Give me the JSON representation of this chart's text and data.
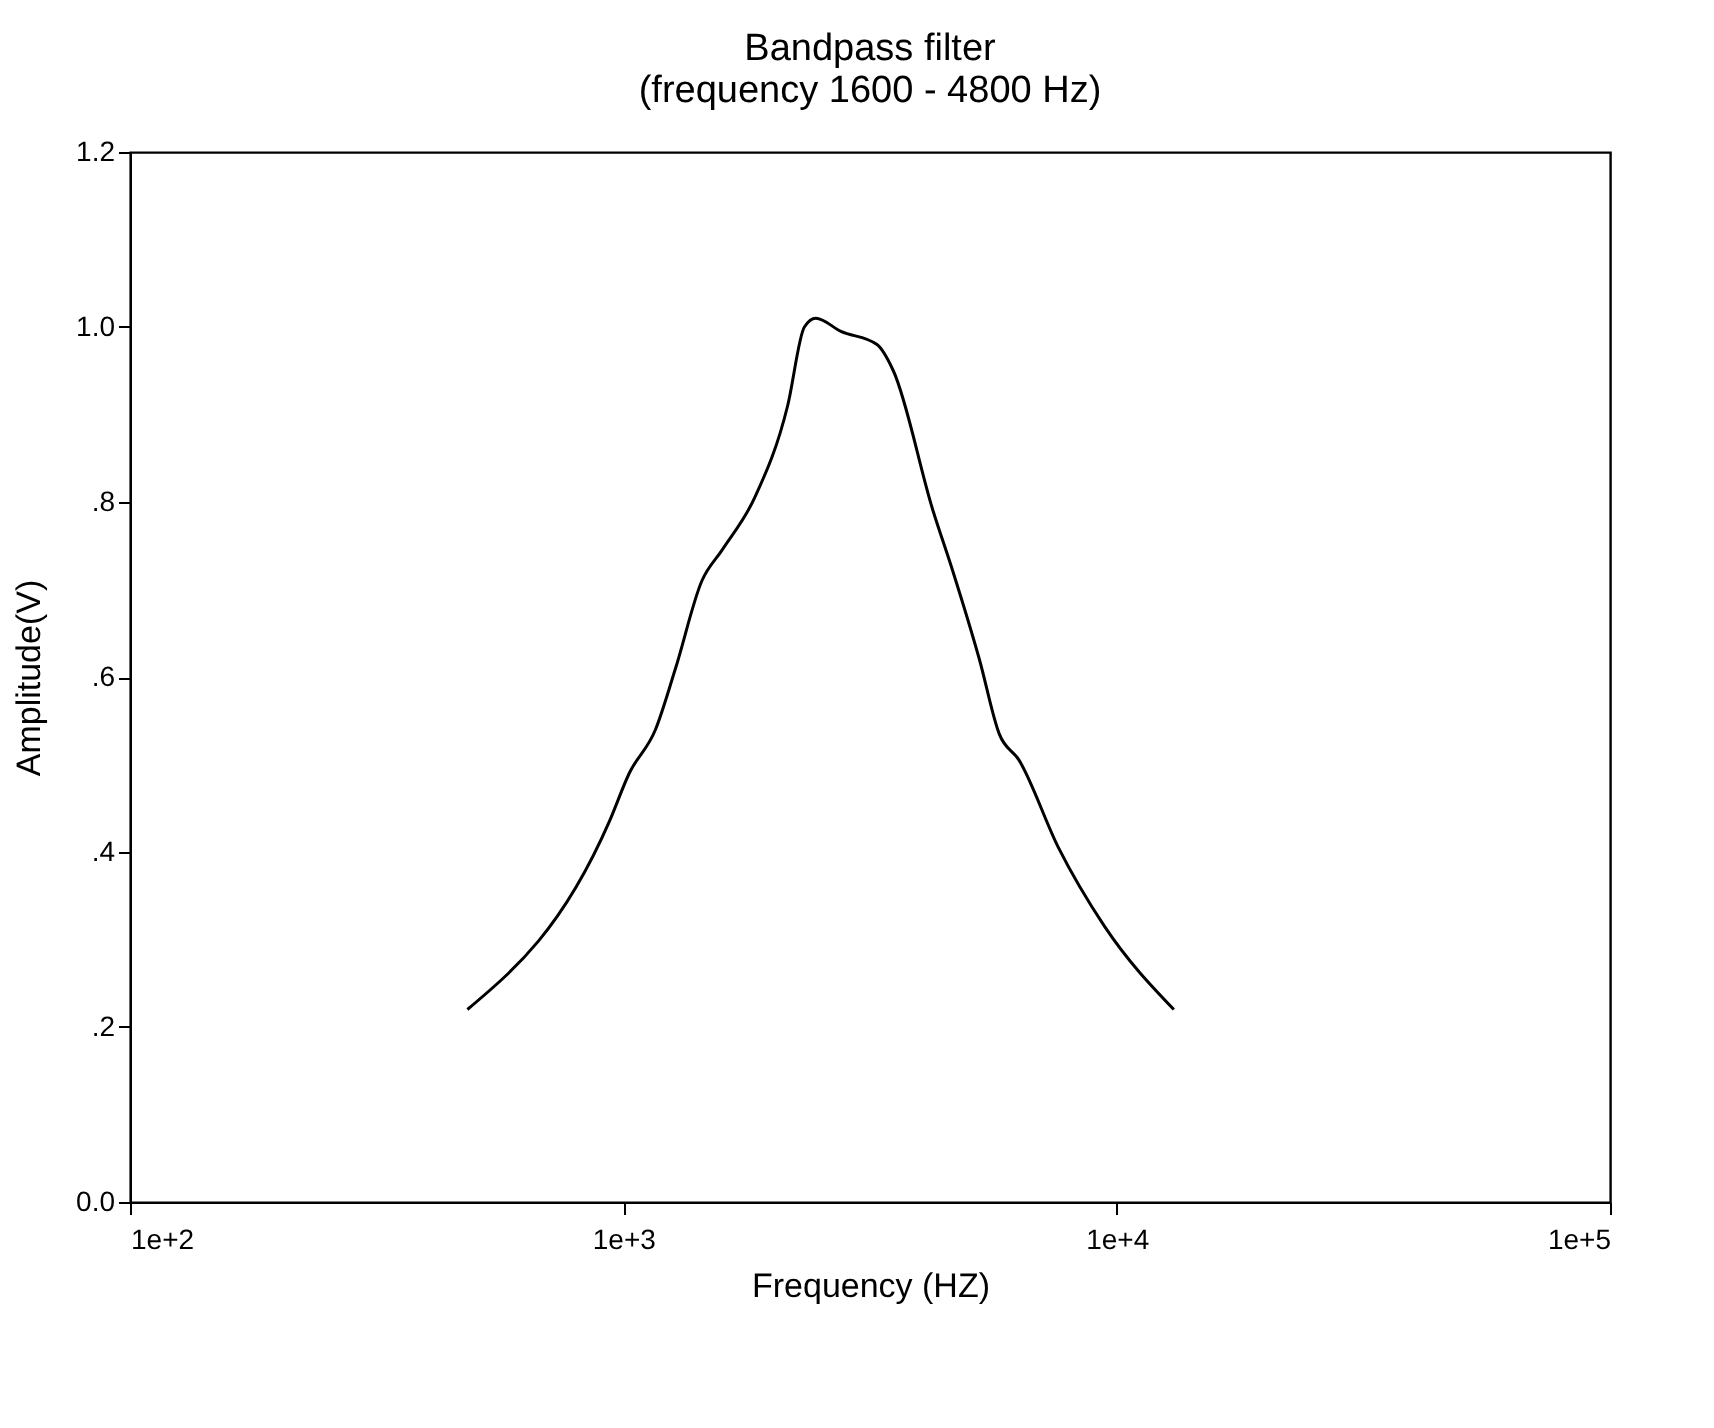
{
  "chart_data": {
    "type": "line",
    "title": [
      "Bandpass filter",
      "(frequency 1600 - 4800 Hz)"
    ],
    "xlabel": "Frequency (HZ)",
    "ylabel": "Amplitude(V)",
    "x": [
      483,
      937,
      1028,
      1162,
      1276,
      1443,
      1585,
      1846,
      2153,
      2328,
      2455,
      2761,
      3267,
      3526,
      4244,
      4660,
      5270,
      5780,
      6340,
      7620,
      9450,
      13060
    ],
    "series": [
      {
        "color": "#000000",
        "values": [
          0.22,
          0.435,
          0.49,
          0.54,
          0.61,
          0.71,
          0.745,
          0.805,
          0.91,
          1.0,
          1.01,
          0.995,
          0.98,
          0.95,
          0.79,
          0.72,
          0.62,
          0.535,
          0.505,
          0.405,
          0.315,
          0.22
        ]
      }
    ],
    "log": "x",
    "xlim": [
      100,
      100000
    ],
    "xticks": [
      {
        "value": 100,
        "label": "1e+2"
      },
      {
        "value": 1000,
        "label": "1e+3"
      },
      {
        "value": 10000,
        "label": "1e+4"
      },
      {
        "value": 100000,
        "label": "1e+5"
      }
    ],
    "ylim": [
      0,
      1.2
    ],
    "yticks": [
      {
        "value": 0,
        "label": "0.0"
      },
      {
        "value": 0.2,
        "label": ".2"
      },
      {
        "value": 0.4,
        "label": ".4"
      },
      {
        "value": 0.6,
        "label": ".6"
      },
      {
        "value": 0.8,
        "label": ".8"
      },
      {
        "value": 1.0,
        "label": "1.0"
      },
      {
        "value": 1.2,
        "label": "1.2"
      }
    ],
    "grid": false,
    "marker": "none",
    "line_style": "solid"
  }
}
